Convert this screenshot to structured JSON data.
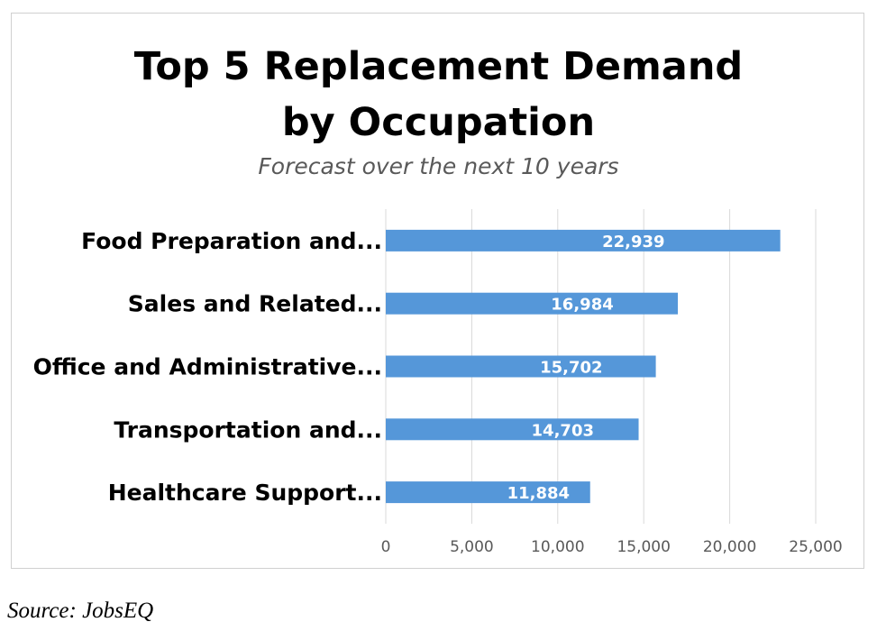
{
  "chart_data": {
    "type": "bar",
    "orientation": "horizontal",
    "title": "Top 5 Replacement Demand\nby Occupation",
    "subtitle": "Forecast over the next 10 years",
    "categories": [
      "Food Preparation and...",
      "Sales and Related...",
      "Office and Administrative...",
      "Transportation and...",
      "Healthcare Support..."
    ],
    "values": [
      22939,
      16984,
      15702,
      14703,
      11884
    ],
    "value_labels": [
      "22,939",
      "16,984",
      "15,702",
      "14,703",
      "11,884"
    ],
    "xlim": [
      0,
      25000
    ],
    "x_ticks": [
      0,
      5000,
      10000,
      15000,
      20000,
      25000
    ],
    "x_tick_labels": [
      "0",
      "5,000",
      "10,000",
      "15,000",
      "20,000",
      "25,000"
    ],
    "grid": "vertical",
    "legend": "none",
    "bar_color": "#5597D9",
    "grid_color": "#D9D9D9"
  },
  "source": "Source: JobsEQ"
}
